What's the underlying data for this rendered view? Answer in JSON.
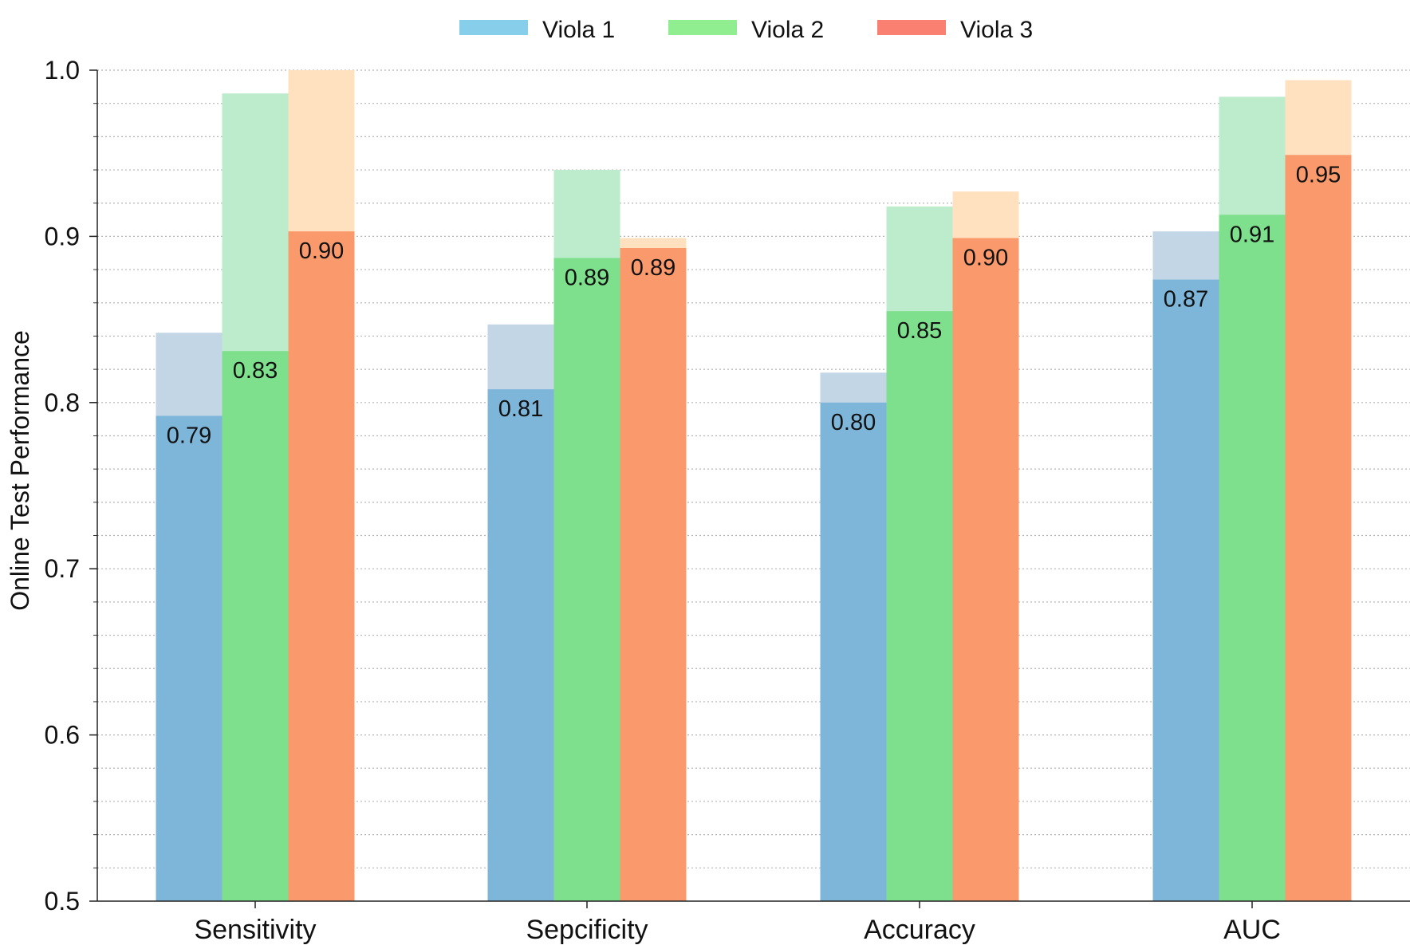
{
  "chart_data": {
    "type": "bar",
    "title": "",
    "xlabel": "",
    "ylabel": "Online Test Performance",
    "ylim": [
      0.5,
      1.0
    ],
    "yticks": [
      "0.5",
      "0.6",
      "0.7",
      "0.8",
      "0.9",
      "1.0"
    ],
    "minor_tick_step": 0.02,
    "grid": "horizontal dotted",
    "legend_position": "top-center",
    "categories": [
      "Sensitivity",
      "Sepcificity",
      "Accuracy",
      "AUC"
    ],
    "series": [
      {
        "name": "Viola 1",
        "legend_color": "#87CEEB",
        "bar_color": "#7EB6DA",
        "upper_color": "#C3D6E6",
        "values": [
          0.792,
          0.808,
          0.8,
          0.874
        ],
        "upper": [
          0.842,
          0.847,
          0.818,
          0.903
        ],
        "labels": [
          "0.79",
          "0.81",
          "0.80",
          "0.87"
        ]
      },
      {
        "name": "Viola 2",
        "legend_color": "#90EE90",
        "bar_color": "#7EE08C",
        "upper_color": "#BDECCD",
        "values": [
          0.831,
          0.887,
          0.855,
          0.913
        ],
        "upper": [
          0.986,
          0.94,
          0.918,
          0.984
        ],
        "labels": [
          "0.83",
          "0.89",
          "0.85",
          "0.91"
        ]
      },
      {
        "name": "Viola 3",
        "legend_color": "#FA8072",
        "bar_color": "#FA9A6C",
        "upper_color": "#FFE1BF",
        "values": [
          0.903,
          0.893,
          0.899,
          0.949
        ],
        "upper": [
          1.0,
          0.899,
          0.927,
          0.994
        ],
        "labels": [
          "0.90",
          "0.89",
          "0.90",
          "0.95"
        ]
      }
    ]
  }
}
